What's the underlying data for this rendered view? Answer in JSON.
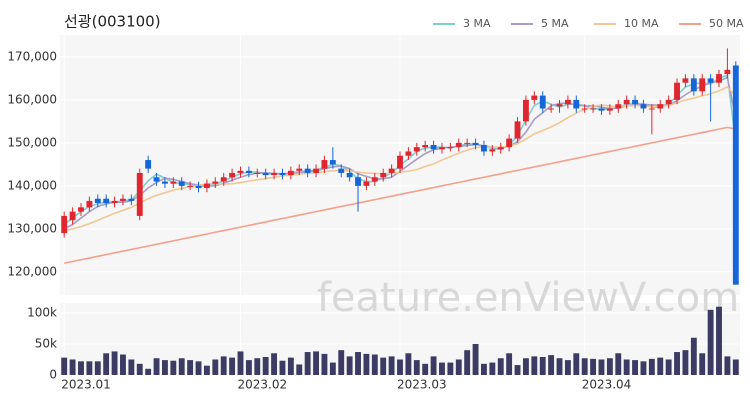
{
  "chart_data": {
    "type": "candlestick",
    "title": "선광(003100)",
    "watermark": "feature.enViewV.com",
    "categories": [
      "2023.01",
      null,
      null,
      null,
      null,
      null,
      null,
      null,
      null,
      null,
      null,
      null,
      null,
      null,
      null,
      null,
      null,
      null,
      null,
      null,
      null,
      "2023.02",
      null,
      null,
      null,
      null,
      null,
      null,
      null,
      null,
      null,
      null,
      null,
      null,
      null,
      null,
      null,
      null,
      null,
      null,
      "2023.03",
      null,
      null,
      null,
      null,
      null,
      null,
      null,
      null,
      null,
      null,
      null,
      null,
      null,
      null,
      null,
      null,
      null,
      null,
      null,
      null,
      null,
      "2023.04",
      null,
      null,
      null,
      null,
      null,
      null,
      null,
      null,
      null,
      null,
      null,
      null,
      null,
      null,
      null,
      null,
      null,
      null
    ],
    "open": [
      129000,
      132000,
      134000,
      135000,
      137000,
      137000,
      136000,
      136500,
      137000,
      133000,
      146000,
      142000,
      141000,
      140500,
      141000,
      140000,
      140000,
      139500,
      140500,
      141000,
      142000,
      143000,
      143500,
      143000,
      143000,
      142500,
      143000,
      142500,
      143500,
      144000,
      143000,
      144000,
      146000,
      144000,
      143000,
      142000,
      140000,
      141000,
      142000,
      143000,
      144000,
      147000,
      148000,
      149000,
      149500,
      148500,
      149000,
      149000,
      150000,
      150000,
      149500,
      148000,
      148500,
      149000,
      151000,
      155000,
      160000,
      161000,
      158000,
      158500,
      159000,
      160000,
      158000,
      158000,
      158000,
      157500,
      158000,
      159000,
      160000,
      159000,
      158000,
      158000,
      159000,
      160000,
      164000,
      165000,
      162000,
      165000,
      164000,
      166000,
      168000
    ],
    "high": [
      134000,
      135000,
      136000,
      137500,
      138000,
      138000,
      137500,
      138000,
      138000,
      144000,
      147000,
      143000,
      142000,
      142000,
      142000,
      141000,
      141000,
      141500,
      142000,
      143000,
      144000,
      144500,
      144500,
      144000,
      144000,
      144000,
      144000,
      144500,
      145000,
      145000,
      145000,
      147000,
      149000,
      145000,
      144000,
      143000,
      142000,
      143000,
      144000,
      145000,
      148000,
      149000,
      150000,
      150500,
      150500,
      150000,
      150000,
      151000,
      151000,
      151000,
      150500,
      149500,
      150000,
      152000,
      156000,
      161000,
      162000,
      162000,
      159000,
      160000,
      161000,
      161000,
      159000,
      159000,
      159000,
      159000,
      160000,
      161000,
      161000,
      160000,
      159000,
      160000,
      161000,
      165000,
      166000,
      166000,
      166000,
      166000,
      167000,
      172000,
      169000
    ],
    "low": [
      128000,
      131000,
      133000,
      134000,
      135000,
      135000,
      135000,
      135500,
      135500,
      132000,
      143000,
      140000,
      139500,
      139500,
      139000,
      139000,
      138500,
      138500,
      139500,
      140000,
      141000,
      142000,
      142000,
      142000,
      141500,
      141500,
      141500,
      141500,
      142500,
      142000,
      142000,
      143000,
      144000,
      142000,
      141000,
      134000,
      139000,
      140000,
      141000,
      142000,
      143000,
      146000,
      147000,
      148000,
      147500,
      147500,
      148000,
      148000,
      149000,
      148500,
      147000,
      147000,
      147500,
      148000,
      150000,
      154000,
      159000,
      157000,
      157000,
      157000,
      158000,
      157000,
      157000,
      157000,
      156500,
      156500,
      157000,
      158000,
      158000,
      157000,
      152000,
      157000,
      158000,
      159000,
      163000,
      161000,
      161000,
      155000,
      163000,
      165000,
      117000
    ],
    "close": [
      133000,
      134000,
      135000,
      136500,
      136000,
      136000,
      136500,
      137000,
      136500,
      143000,
      144000,
      141000,
      140500,
      141000,
      140000,
      140000,
      139500,
      140500,
      141000,
      142000,
      143000,
      143500,
      143000,
      143000,
      142500,
      143000,
      142500,
      143500,
      144000,
      143000,
      144000,
      146000,
      145000,
      143000,
      142000,
      140000,
      141000,
      142000,
      143000,
      144000,
      147000,
      148000,
      149000,
      149500,
      148500,
      149000,
      149000,
      150000,
      150000,
      149500,
      148000,
      148500,
      149000,
      151000,
      155000,
      160000,
      161000,
      158000,
      158000,
      159000,
      160000,
      158000,
      158000,
      158000,
      157500,
      158000,
      159000,
      160000,
      159000,
      158000,
      158000,
      159000,
      160000,
      164000,
      165000,
      162000,
      165000,
      164000,
      166000,
      167000,
      117000
    ],
    "up_color": "#e0262e",
    "down_color": "#1566d9",
    "series": [
      {
        "name": "3 MA",
        "color": "#7fcfd1",
        "values": [
          131000,
          132500,
          134000,
          135200,
          135800,
          136200,
          136200,
          136500,
          136700,
          138800,
          141200,
          142700,
          141800,
          140800,
          140500,
          140300,
          139800,
          140000,
          140300,
          141200,
          142000,
          142800,
          143200,
          143200,
          142800,
          142800,
          142700,
          143000,
          143300,
          143500,
          143700,
          144300,
          145000,
          144700,
          143300,
          141700,
          141000,
          141000,
          142000,
          143000,
          144700,
          146300,
          148000,
          148800,
          149000,
          149000,
          148800,
          149300,
          149700,
          149800,
          149200,
          148700,
          148500,
          149500,
          151700,
          155300,
          158700,
          159700,
          159000,
          158300,
          159000,
          159000,
          158700,
          158000,
          157800,
          157800,
          158200,
          159000,
          159300,
          159000,
          158300,
          158300,
          159000,
          161000,
          163000,
          163700,
          164000,
          163700,
          165000,
          165700,
          150000
        ]
      },
      {
        "name": "5 MA",
        "color": "#a99cc8",
        "values": [
          130000,
          131000,
          132500,
          134000,
          135200,
          135800,
          136200,
          136200,
          136500,
          137800,
          139500,
          140800,
          141800,
          141500,
          141000,
          140500,
          140200,
          140000,
          140000,
          140600,
          141300,
          142000,
          142600,
          143000,
          143000,
          142900,
          142800,
          142900,
          143100,
          143300,
          143500,
          144000,
          144400,
          144600,
          144000,
          142800,
          142200,
          141600,
          141600,
          142000,
          143400,
          144800,
          146200,
          147500,
          148400,
          148800,
          149000,
          149200,
          149400,
          149600,
          149300,
          149000,
          148900,
          149200,
          150300,
          152500,
          155500,
          157000,
          158600,
          159200,
          159200,
          158800,
          158600,
          158600,
          158300,
          158000,
          158100,
          158600,
          158900,
          159000,
          158800,
          158800,
          158800,
          159800,
          161200,
          162400,
          163200,
          164000,
          164400,
          165200,
          155800
        ]
      },
      {
        "name": "10 MA",
        "color": "#f2c792",
        "values": [
          129500,
          130000,
          130500,
          131200,
          132000,
          132800,
          133600,
          134300,
          135000,
          136000,
          137000,
          137800,
          138400,
          139000,
          139400,
          139800,
          140100,
          140500,
          140500,
          140400,
          140500,
          140800,
          141100,
          141400,
          141700,
          142000,
          142300,
          142500,
          142700,
          142900,
          143000,
          143300,
          143500,
          143600,
          143500,
          143200,
          143000,
          142900,
          142800,
          142900,
          143200,
          143400,
          143800,
          144500,
          145100,
          146000,
          146800,
          147600,
          148300,
          148900,
          149000,
          149000,
          149000,
          149200,
          149800,
          150900,
          152100,
          152900,
          153700,
          154700,
          155900,
          156900,
          157800,
          158500,
          158800,
          158600,
          158400,
          158600,
          158700,
          158600,
          158400,
          158500,
          158700,
          159300,
          160000,
          160400,
          161000,
          161400,
          162100,
          163000,
          160900
        ]
      },
      {
        "name": "50 MA",
        "color": "#f4a08a",
        "values": [
          122000,
          122400,
          122800,
          123200,
          123600,
          124000,
          124400,
          124800,
          125200,
          125600,
          126000,
          126400,
          126800,
          127200,
          127600,
          128000,
          128400,
          128800,
          129200,
          129600,
          130000,
          130400,
          130800,
          131200,
          131600,
          132000,
          132400,
          132800,
          133200,
          133600,
          134000,
          134400,
          134800,
          135200,
          135600,
          136000,
          136400,
          136800,
          137200,
          137600,
          138000,
          138400,
          138800,
          139200,
          139600,
          140000,
          140400,
          140800,
          141200,
          141600,
          142000,
          142400,
          142800,
          143200,
          143600,
          144000,
          144400,
          144800,
          145200,
          145600,
          146000,
          146400,
          146800,
          147200,
          147600,
          148000,
          148400,
          148800,
          149200,
          149600,
          150000,
          150400,
          150800,
          151200,
          151600,
          152000,
          152400,
          152800,
          153200,
          153600,
          153200
        ]
      }
    ],
    "ylim": [
      114600,
      175100
    ],
    "yticks": [
      {
        "value": 120000,
        "label": "120,000"
      },
      {
        "value": 130000,
        "label": "130,000"
      },
      {
        "value": 140000,
        "label": "140,000"
      },
      {
        "value": 150000,
        "label": "150,000"
      },
      {
        "value": 160000,
        "label": "160,000"
      },
      {
        "value": 170000,
        "label": "170,000"
      }
    ],
    "volume": {
      "color": "#3b3b63",
      "values": [
        28000,
        25000,
        22000,
        22000,
        22000,
        35000,
        38000,
        33000,
        25000,
        18000,
        10000,
        27000,
        24000,
        23000,
        27000,
        24000,
        22000,
        15000,
        25000,
        30000,
        28000,
        38000,
        24000,
        27000,
        29000,
        35000,
        23000,
        28000,
        17000,
        37000,
        38000,
        34000,
        20000,
        40000,
        30000,
        37000,
        34000,
        33000,
        28000,
        30000,
        25000,
        35000,
        24000,
        18000,
        30000,
        20000,
        20000,
        25000,
        40000,
        50000,
        18000,
        20000,
        27000,
        35000,
        16000,
        27000,
        30000,
        29000,
        32000,
        27000,
        24000,
        35000,
        27000,
        26000,
        25000,
        27000,
        35000,
        25000,
        24000,
        22000,
        26000,
        28000,
        25000,
        37000,
        40000,
        60000,
        35000,
        105000,
        110000,
        30000,
        25000
      ],
      "ylim": [
        0,
        116000
      ],
      "yticks": [
        0,
        {
          "value": 50000,
          "label": "50k"
        },
        {
          "value": 100000,
          "label": "100k"
        }
      ]
    },
    "grid": true
  }
}
